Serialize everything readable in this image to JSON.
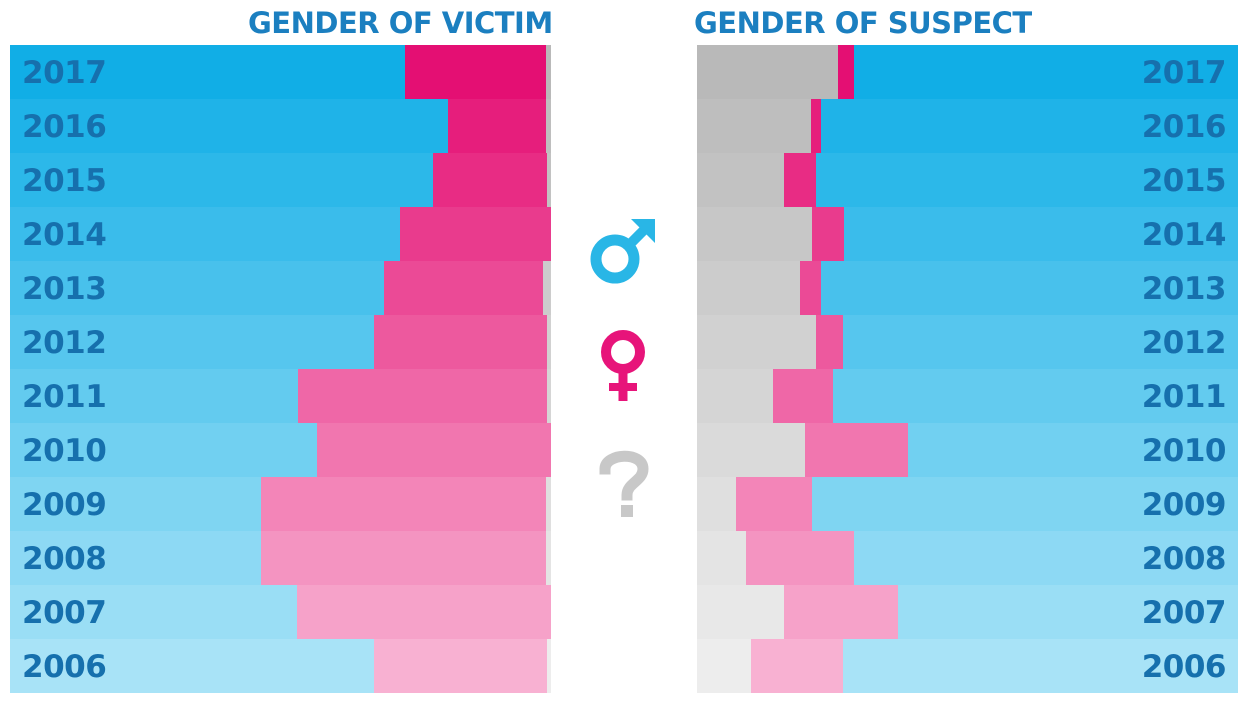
{
  "left_title": "GENDER OF VICTIM",
  "right_title": "GENDER OF SUSPECT",
  "legend_icons": [
    {
      "name": "male-symbol-icon",
      "color": "#29b6e6"
    },
    {
      "name": "female-symbol-icon",
      "color": "#e7147a"
    },
    {
      "name": "question-mark-icon",
      "color": "#c8c8c8"
    }
  ],
  "colors": {
    "male_top": "#11aee6",
    "male_bottom": "#a8e3f7",
    "female_top": "#e40f73",
    "female_bottom": "#f8b1d2",
    "unknown_top": "#b9b9b9",
    "unknown_bottom": "#ededed",
    "label": "#1670ad",
    "title": "#1b7fc0"
  },
  "chart_data": [
    {
      "type": "bar",
      "stacked": true,
      "orientation": "horizontal",
      "title": "GENDER OF VICTIM",
      "categories": [
        "2017",
        "2016",
        "2015",
        "2014",
        "2013",
        "2012",
        "2011",
        "2010",
        "2009",
        "2008",
        "2007",
        "2006"
      ],
      "series": [
        {
          "key": "male",
          "values": [
            73.1,
            81.0,
            78.2,
            72.0,
            69.1,
            67.2,
            53.2,
            56.8,
            46.4,
            46.4,
            53.0,
            67.2
          ]
        },
        {
          "key": "female",
          "values": [
            26.1,
            18.2,
            21.1,
            28.0,
            29.4,
            32.0,
            46.0,
            43.2,
            52.7,
            52.7,
            47.0,
            32.0
          ]
        },
        {
          "key": "unknown",
          "values": [
            0.8,
            0.8,
            0.7,
            0.0,
            1.5,
            0.8,
            0.8,
            0.0,
            0.9,
            0.9,
            0.0,
            0.8
          ]
        }
      ],
      "xlim": [
        0,
        100
      ]
    },
    {
      "type": "bar",
      "stacked": true,
      "orientation": "horizontal",
      "title": "GENDER OF SUSPECT",
      "categories": [
        "2017",
        "2016",
        "2015",
        "2014",
        "2013",
        "2012",
        "2011",
        "2010",
        "2009",
        "2008",
        "2007",
        "2006"
      ],
      "series": [
        {
          "key": "unknown",
          "values": [
            26.1,
            21.1,
            16.1,
            21.3,
            19.1,
            22.0,
            14.0,
            20.0,
            7.2,
            9.0,
            16.1,
            10.0
          ]
        },
        {
          "key": "female",
          "values": [
            2.9,
            1.9,
            5.9,
            5.9,
            3.9,
            4.9,
            11.1,
            19.0,
            14.0,
            20.0,
            21.0,
            17.0
          ]
        },
        {
          "key": "male",
          "values": [
            71.0,
            77.0,
            78.0,
            72.8,
            77.0,
            73.1,
            74.9,
            61.0,
            78.8,
            71.0,
            62.9,
            73.0
          ]
        }
      ],
      "xlim": [
        0,
        100
      ]
    }
  ]
}
